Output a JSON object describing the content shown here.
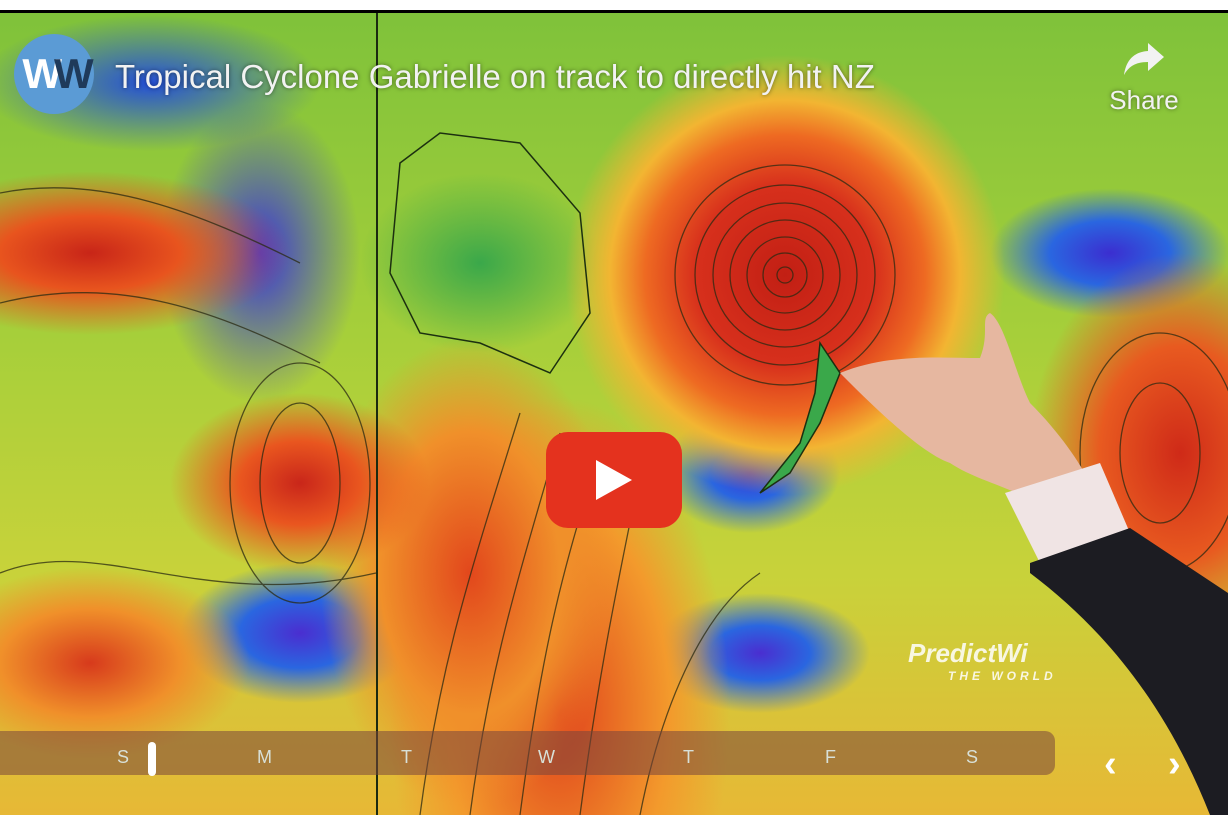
{
  "video": {
    "title": "Tropical Cyclone Gabrielle on track to directly hit NZ",
    "channel_logo": "WW",
    "share_label": "Share",
    "share_icon": "share-arrow-icon",
    "play_icon": "youtube-play-icon",
    "brand_color": "#e4321e"
  },
  "map": {
    "watermark": "PredictWi",
    "watermark_sub": "THE WORLD"
  },
  "timeline": {
    "days": [
      "S",
      "M",
      "T",
      "W",
      "T",
      "F",
      "S"
    ],
    "prev_icon": "chevron-left-icon",
    "next_icon": "chevron-right-icon"
  }
}
